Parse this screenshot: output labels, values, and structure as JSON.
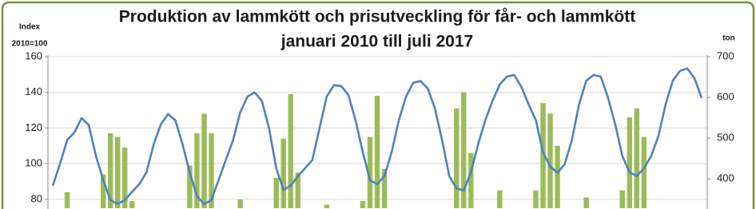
{
  "chart_data": {
    "type": "combo",
    "title": [
      "Produktion av lammkött och prisutveckling för får- och lammkött",
      "januari 2010 till juli 2017"
    ],
    "ylabel": [
      "Index",
      "2010=100"
    ],
    "y2label": "ton",
    "categories": [
      null,
      null,
      null,
      null,
      null,
      null,
      null,
      null,
      null,
      null,
      null,
      null,
      null,
      null,
      null,
      null,
      null,
      null,
      null,
      null,
      null,
      null,
      null,
      null,
      null,
      null,
      null,
      null,
      null,
      null,
      null,
      null,
      null,
      null,
      null,
      null,
      null,
      null,
      null,
      null,
      null,
      null,
      null,
      null,
      null,
      null,
      null,
      null,
      null,
      null,
      null,
      null,
      null,
      null,
      null,
      null,
      null,
      null,
      null,
      null,
      null,
      null,
      null,
      null,
      null,
      null,
      null,
      null,
      null,
      null,
      null,
      null,
      null,
      null,
      null,
      null,
      null,
      null,
      null,
      null,
      null,
      null,
      null,
      null,
      null,
      null,
      null,
      null,
      null,
      null,
      null
    ],
    "series": [
      {
        "type": "bar",
        "color": "#9bbb59",
        "values": [
          null,
          null,
          84,
          null,
          null,
          null,
          null,
          94,
          117,
          115,
          109,
          79,
          null,
          null,
          null,
          null,
          null,
          null,
          null,
          99,
          117,
          128,
          117,
          null,
          null,
          null,
          80,
          null,
          null,
          null,
          null,
          92,
          114,
          139,
          95,
          null,
          null,
          null,
          77,
          null,
          null,
          null,
          null,
          79,
          115,
          138,
          97,
          null,
          null,
          null,
          null,
          null,
          null,
          null,
          null,
          null,
          131,
          140,
          106,
          null,
          null,
          null,
          85,
          null,
          null,
          null,
          null,
          85,
          134,
          128,
          110,
          null,
          null,
          null,
          81,
          null,
          null,
          null,
          null,
          85,
          126,
          131,
          115,
          null,
          null,
          null,
          null,
          null,
          null,
          null,
          null
        ]
      },
      {
        "type": "line",
        "color": "#4f81bd",
        "axis": "y2",
        "values": [
          383,
          436,
          495,
          514,
          549,
          532,
          456,
          397,
          348,
          338,
          348,
          368,
          387,
          416,
          485,
          534,
          559,
          544,
          485,
          416,
          358,
          338,
          348,
          397,
          446,
          495,
          563,
          602,
          612,
          592,
          524,
          426,
          373,
          383,
          407,
          426,
          446,
          524,
          602,
          630,
          628,
          606,
          544,
          465,
          397,
          387,
          407,
          465,
          544,
          602,
          636,
          640,
          622,
          573,
          495,
          407,
          377,
          371,
          416,
          485,
          544,
          592,
          632,
          651,
          655,
          626,
          583,
          544,
          465,
          430,
          415,
          436,
          495,
          583,
          641,
          655,
          651,
          600,
          535,
          456,
          416,
          407,
          426,
          456,
          505,
          583,
          641,
          665,
          671,
          647,
          598
        ]
      }
    ],
    "ylim": [
      75,
      160
    ],
    "yticks": [
      80,
      100,
      120,
      140,
      160
    ],
    "y2lim": [
      328,
      700
    ],
    "y2ticks": [
      400,
      500,
      600,
      700
    ],
    "grid": true
  }
}
